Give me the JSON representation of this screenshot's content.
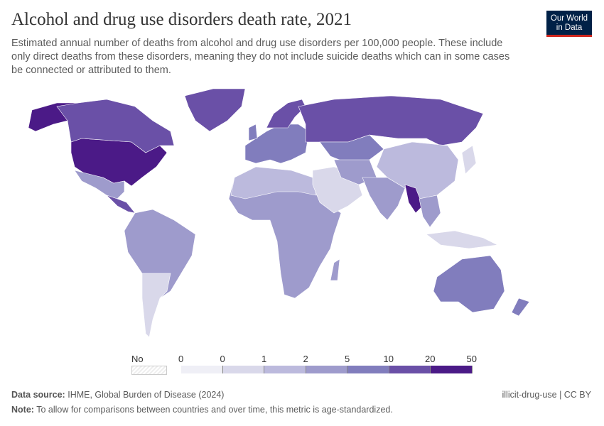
{
  "header": {
    "title": "Alcohol and drug use disorders death rate, 2021",
    "subtitle": "Estimated annual number of deaths from alcohol and drug use disorders per 100,000 people. These include only direct deaths from these disorders, meaning they do not include suicide deaths which can in some cases be connected or attributed to them.",
    "logo": "Our World in Data"
  },
  "chart_data": {
    "type": "choropleth",
    "year": "2021",
    "legend": {
      "no_data_label": "No data",
      "ticks": [
        "0",
        "0",
        "1",
        "2",
        "5",
        "10",
        "20",
        "50"
      ],
      "colors": [
        "#efeff6",
        "#d9d8ea",
        "#bcbadd",
        "#9e9bcc",
        "#817dbd",
        "#6a50a7",
        "#4b1a87"
      ],
      "no_data_color": "#eeeeee"
    },
    "regions": [
      {
        "name": "United States",
        "bin": 6
      },
      {
        "name": "Alaska",
        "bin": 6
      },
      {
        "name": "Canada",
        "bin": 5
      },
      {
        "name": "Greenland",
        "bin": 5
      },
      {
        "name": "Mexico",
        "bin": 3
      },
      {
        "name": "Central America",
        "bin": 5
      },
      {
        "name": "South America",
        "bin": 3
      },
      {
        "name": "Argentina & Chile",
        "bin": 1
      },
      {
        "name": "Africa",
        "bin": 3
      },
      {
        "name": "North Africa",
        "bin": 2
      },
      {
        "name": "Madagascar",
        "bin": 3
      },
      {
        "name": "Europe",
        "bin": 4
      },
      {
        "name": "Scandinavia",
        "bin": 5
      },
      {
        "name": "United Kingdom",
        "bin": 4
      },
      {
        "name": "Russia",
        "bin": 5
      },
      {
        "name": "Central Asia",
        "bin": 4
      },
      {
        "name": "Middle East",
        "bin": 1
      },
      {
        "name": "Iran & Afghanistan",
        "bin": 3
      },
      {
        "name": "India",
        "bin": 3
      },
      {
        "name": "China",
        "bin": 2
      },
      {
        "name": "Myanmar",
        "bin": 6
      },
      {
        "name": "Southeast Asia",
        "bin": 3
      },
      {
        "name": "Indonesia",
        "bin": 1
      },
      {
        "name": "Japan",
        "bin": 1
      },
      {
        "name": "Australia",
        "bin": 4
      },
      {
        "name": "New Zealand",
        "bin": 4
      }
    ]
  },
  "footer": {
    "source_label": "Data source:",
    "source": "IHME, Global Burden of Disease (2024)",
    "note_label": "Note:",
    "note": "To allow for comparisons between countries and over time, this metric is age-standardized.",
    "license": "illicit-drug-use | CC BY"
  }
}
